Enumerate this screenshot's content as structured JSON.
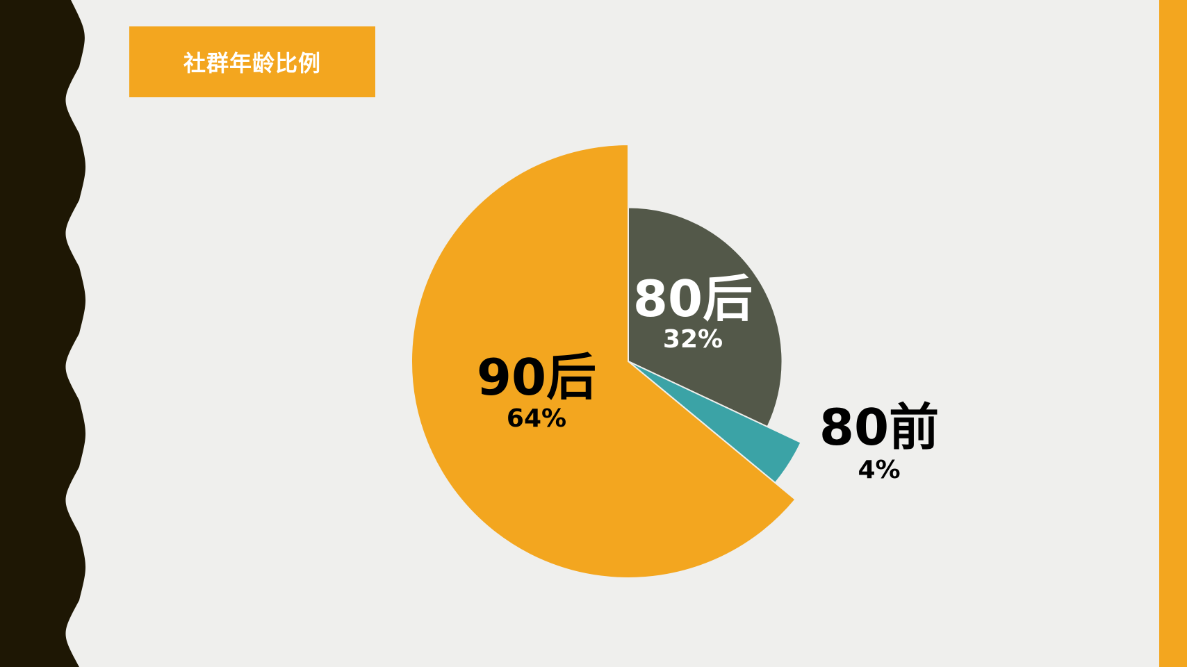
{
  "title": "社群年龄比例",
  "colors": {
    "background": "#efefed",
    "left_band": "#1e1704",
    "accent": "#f3a61f",
    "slice_90": "#f3a61f",
    "slice_80": "#535849",
    "slice_pre80": "#3ba3a6",
    "title_text": "#ffffff"
  },
  "chart_data": {
    "type": "pie",
    "title": "社群年龄比例",
    "start_angle_deg": 0,
    "direction": "clockwise",
    "slices": [
      {
        "key": "s80",
        "label": "80后",
        "percent_label": "32%",
        "value": 32,
        "color": "#535849",
        "text_color": "#ffffff",
        "radius_scale": 0.71
      },
      {
        "key": "sPre80",
        "label": "80前",
        "percent_label": "4%",
        "value": 4,
        "color": "#3ba3a6",
        "text_color": "#000000",
        "radius_scale": 0.88
      },
      {
        "key": "s90",
        "label": "90后",
        "percent_label": "64%",
        "value": 64,
        "color": "#f3a61f",
        "text_color": "#000000",
        "radius_scale": 1.0
      }
    ]
  }
}
